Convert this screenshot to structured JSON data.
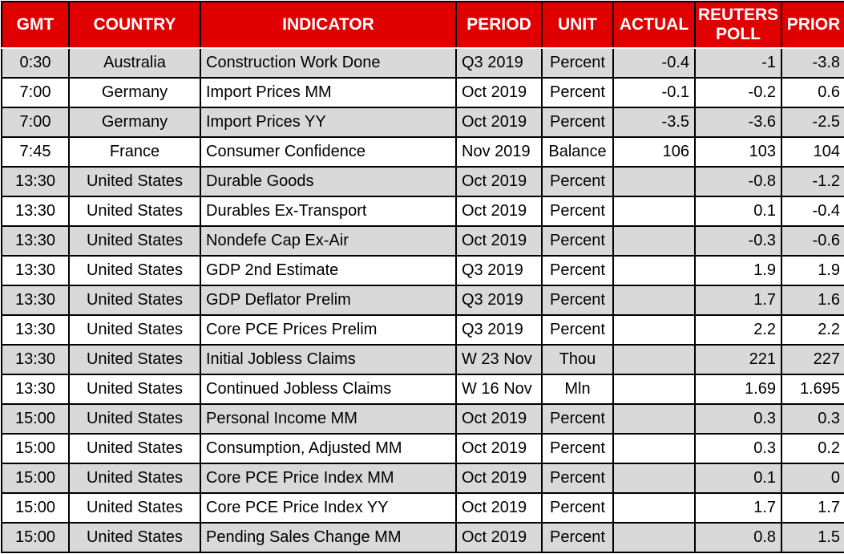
{
  "colors": {
    "header_bg": "#e00000",
    "header_text": "#ffffff",
    "row_stripe": "#d9d9d9",
    "row_plain": "#ffffff",
    "border": "#000000",
    "cell_text": "#000000"
  },
  "table": {
    "columns": [
      {
        "label": "GMT"
      },
      {
        "label": "COUNTRY"
      },
      {
        "label": "INDICATOR"
      },
      {
        "label": "PERIOD"
      },
      {
        "label": "UNIT"
      },
      {
        "label": "ACTUAL"
      },
      {
        "label": "REUTERS POLL"
      },
      {
        "label": "PRIOR"
      }
    ],
    "rows": [
      [
        "0:30",
        "Australia",
        "Construction Work Done",
        "Q3 2019",
        "Percent",
        "-0.4",
        "-1",
        "-3.8"
      ],
      [
        "7:00",
        "Germany",
        "Import Prices MM",
        "Oct 2019",
        "Percent",
        "-0.1",
        "-0.2",
        "0.6"
      ],
      [
        "7:00",
        "Germany",
        "Import Prices YY",
        "Oct 2019",
        "Percent",
        "-3.5",
        "-3.6",
        "-2.5"
      ],
      [
        "7:45",
        "France",
        "Consumer Confidence",
        "Nov 2019",
        "Balance",
        "106",
        "103",
        "104"
      ],
      [
        "13:30",
        "United States",
        "Durable Goods",
        "Oct 2019",
        "Percent",
        "",
        "-0.8",
        "-1.2"
      ],
      [
        "13:30",
        "United States",
        "Durables Ex-Transport",
        "Oct 2019",
        "Percent",
        "",
        "0.1",
        "-0.4"
      ],
      [
        "13:30",
        "United States",
        "Nondefe Cap Ex-Air",
        "Oct 2019",
        "Percent",
        "",
        "-0.3",
        "-0.6"
      ],
      [
        "13:30",
        "United States",
        "GDP 2nd Estimate",
        "Q3 2019",
        "Percent",
        "",
        "1.9",
        "1.9"
      ],
      [
        "13:30",
        "United States",
        "GDP Deflator Prelim",
        "Q3 2019",
        "Percent",
        "",
        "1.7",
        "1.6"
      ],
      [
        "13:30",
        "United States",
        "Core PCE Prices Prelim",
        "Q3 2019",
        "Percent",
        "",
        "2.2",
        "2.2"
      ],
      [
        "13:30",
        "United States",
        "Initial Jobless Claims",
        "W 23 Nov",
        "Thou",
        "",
        "221",
        "227"
      ],
      [
        "13:30",
        "United States",
        "Continued Jobless Claims",
        "W 16 Nov",
        "Mln",
        "",
        "1.69",
        "1.695"
      ],
      [
        "15:00",
        "United States",
        "Personal Income MM",
        "Oct 2019",
        "Percent",
        "",
        "0.3",
        "0.3"
      ],
      [
        "15:00",
        "United States",
        "Consumption, Adjusted MM",
        "Oct 2019",
        "Percent",
        "",
        "0.3",
        "0.2"
      ],
      [
        "15:00",
        "United States",
        "Core PCE Price Index MM",
        "Oct 2019",
        "Percent",
        "",
        "0.1",
        "0"
      ],
      [
        "15:00",
        "United States",
        "Core PCE Price Index YY",
        "Oct 2019",
        "Percent",
        "",
        "1.7",
        "1.7"
      ],
      [
        "15:00",
        "United States",
        "Pending Sales Change MM",
        "Oct 2019",
        "Percent",
        "",
        "0.8",
        "1.5"
      ]
    ]
  },
  "chart_data": {
    "type": "table",
    "columns": [
      "GMT",
      "COUNTRY",
      "INDICATOR",
      "PERIOD",
      "UNIT",
      "ACTUAL",
      "REUTERS POLL",
      "PRIOR"
    ],
    "rows": [
      [
        "0:30",
        "Australia",
        "Construction Work Done",
        "Q3 2019",
        "Percent",
        -0.4,
        -1,
        -3.8
      ],
      [
        "7:00",
        "Germany",
        "Import Prices MM",
        "Oct 2019",
        "Percent",
        -0.1,
        -0.2,
        0.6
      ],
      [
        "7:00",
        "Germany",
        "Import Prices YY",
        "Oct 2019",
        "Percent",
        -3.5,
        -3.6,
        -2.5
      ],
      [
        "7:45",
        "France",
        "Consumer Confidence",
        "Nov 2019",
        "Balance",
        106,
        103,
        104
      ],
      [
        "13:30",
        "United States",
        "Durable Goods",
        "Oct 2019",
        "Percent",
        null,
        -0.8,
        -1.2
      ],
      [
        "13:30",
        "United States",
        "Durables Ex-Transport",
        "Oct 2019",
        "Percent",
        null,
        0.1,
        -0.4
      ],
      [
        "13:30",
        "United States",
        "Nondefe Cap Ex-Air",
        "Oct 2019",
        "Percent",
        null,
        -0.3,
        -0.6
      ],
      [
        "13:30",
        "United States",
        "GDP 2nd Estimate",
        "Q3 2019",
        "Percent",
        null,
        1.9,
        1.9
      ],
      [
        "13:30",
        "United States",
        "GDP Deflator Prelim",
        "Q3 2019",
        "Percent",
        null,
        1.7,
        1.6
      ],
      [
        "13:30",
        "United States",
        "Core PCE Prices Prelim",
        "Q3 2019",
        "Percent",
        null,
        2.2,
        2.2
      ],
      [
        "13:30",
        "United States",
        "Initial Jobless Claims",
        "W 23 Nov",
        "Thou",
        null,
        221,
        227
      ],
      [
        "13:30",
        "United States",
        "Continued Jobless Claims",
        "W 16 Nov",
        "Mln",
        null,
        1.69,
        1.695
      ],
      [
        "15:00",
        "United States",
        "Personal Income MM",
        "Oct 2019",
        "Percent",
        null,
        0.3,
        0.3
      ],
      [
        "15:00",
        "United States",
        "Consumption, Adjusted MM",
        "Oct 2019",
        "Percent",
        null,
        0.3,
        0.2
      ],
      [
        "15:00",
        "United States",
        "Core PCE Price Index MM",
        "Oct 2019",
        "Percent",
        null,
        0.1,
        0
      ],
      [
        "15:00",
        "United States",
        "Core PCE Price Index YY",
        "Oct 2019",
        "Percent",
        null,
        1.7,
        1.7
      ],
      [
        "15:00",
        "United States",
        "Pending Sales Change MM",
        "Oct 2019",
        "Percent",
        null,
        0.8,
        1.5
      ]
    ]
  }
}
